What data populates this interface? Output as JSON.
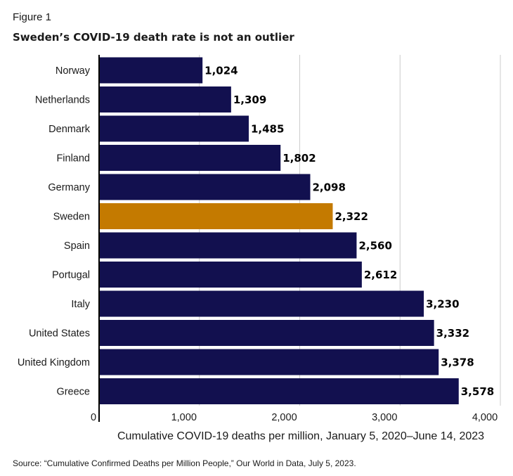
{
  "figure_label": "Figure 1",
  "source": "Source: “Cumulative Confirmed Deaths per Million People,” Our World in Data, July 5, 2023.",
  "colors": {
    "bar": "#12104f",
    "highlight": "#c47a00",
    "grid": "#cccccc",
    "axis": "#000000"
  },
  "chart_data": {
    "type": "bar",
    "orientation": "horizontal",
    "title": "Sweden’s COVID-19 death rate is not an outlier",
    "xlabel": "Cumulative COVID-19 deaths per million, January 5, 2020–June 14, 2023",
    "ylabel": "",
    "xlim": [
      0,
      4000
    ],
    "xticks": [
      0,
      1000,
      2000,
      3000,
      4000
    ],
    "xtick_labels": [
      "0",
      "1,000",
      "2,000",
      "3,000",
      "4,000"
    ],
    "grid": true,
    "highlight_category": "Sweden",
    "categories": [
      "Norway",
      "Netherlands",
      "Denmark",
      "Finland",
      "Germany",
      "Sweden",
      "Spain",
      "Portugal",
      "Italy",
      "United States",
      "United Kingdom",
      "Greece"
    ],
    "values": [
      1024,
      1309,
      1485,
      1802,
      2098,
      2322,
      2560,
      2612,
      3230,
      3332,
      3378,
      3578
    ],
    "value_labels": [
      "1,024",
      "1,309",
      "1,485",
      "1,802",
      "2,098",
      "2,322",
      "2,560",
      "2,612",
      "3,230",
      "3,332",
      "3,378",
      "3,578"
    ]
  }
}
